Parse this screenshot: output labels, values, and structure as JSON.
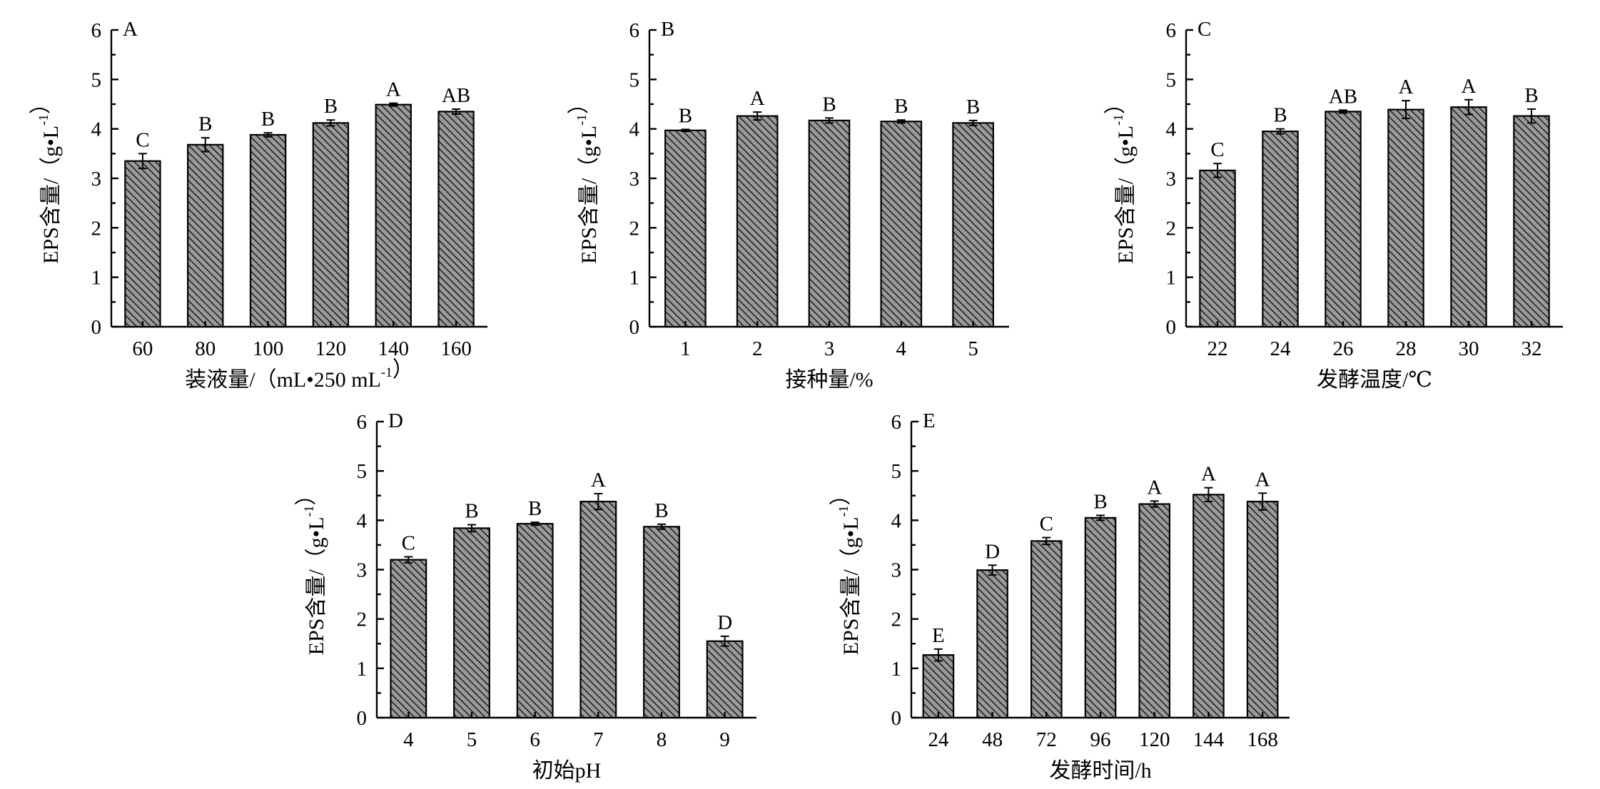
{
  "chart_data": [
    {
      "type": "bar",
      "panel_label": "A",
      "categories": [
        "60",
        "80",
        "100",
        "120",
        "140",
        "160"
      ],
      "values": [
        3.35,
        3.68,
        3.88,
        4.12,
        4.49,
        4.35
      ],
      "errors": [
        0.15,
        0.14,
        0.04,
        0.06,
        0.03,
        0.05
      ],
      "significance": [
        "C",
        "B",
        "B",
        "B",
        "A",
        "AB"
      ],
      "xlabel": "装液量/（mL•250 mL-1）",
      "ylabel": "EPS含量/（g•L-1）",
      "ylim": [
        0,
        6
      ],
      "yticks": [
        "0",
        "1",
        "2",
        "3",
        "4",
        "5",
        "6"
      ],
      "grid": false
    },
    {
      "type": "bar",
      "panel_label": "B",
      "categories": [
        "1",
        "2",
        "3",
        "4",
        "5"
      ],
      "values": [
        3.97,
        4.26,
        4.17,
        4.15,
        4.12
      ],
      "errors": [
        0.02,
        0.08,
        0.05,
        0.03,
        0.05
      ],
      "significance": [
        "B",
        "A",
        "B",
        "B",
        "B"
      ],
      "xlabel": "接种量/%",
      "ylabel": "EPS含量/（g•L-1）",
      "ylim": [
        0,
        6
      ],
      "yticks": [
        "0",
        "1",
        "2",
        "3",
        "4",
        "5",
        "6"
      ],
      "grid": false
    },
    {
      "type": "bar",
      "panel_label": "C",
      "categories": [
        "22",
        "24",
        "26",
        "28",
        "30",
        "32"
      ],
      "values": [
        3.16,
        3.95,
        4.35,
        4.39,
        4.44,
        4.26
      ],
      "errors": [
        0.14,
        0.05,
        0.03,
        0.18,
        0.15,
        0.14
      ],
      "significance": [
        "C",
        "B",
        "AB",
        "A",
        "A",
        "B"
      ],
      "xlabel": "发酵温度/℃",
      "ylabel": "EPS含量/（g•L-1）",
      "ylim": [
        0,
        6
      ],
      "yticks": [
        "0",
        "1",
        "2",
        "3",
        "4",
        "5",
        "6"
      ],
      "grid": false
    },
    {
      "type": "bar",
      "panel_label": "D",
      "categories": [
        "4",
        "5",
        "6",
        "7",
        "8",
        "9"
      ],
      "values": [
        3.2,
        3.84,
        3.93,
        4.38,
        3.87,
        1.55
      ],
      "errors": [
        0.06,
        0.07,
        0.03,
        0.16,
        0.05,
        0.1
      ],
      "significance": [
        "C",
        "B",
        "B",
        "A",
        "B",
        "D"
      ],
      "xlabel": "初始pH",
      "ylabel": "EPS含量/（g•L-1）",
      "ylim": [
        0,
        6
      ],
      "yticks": [
        "0",
        "1",
        "2",
        "3",
        "4",
        "5",
        "6"
      ],
      "grid": false
    },
    {
      "type": "bar",
      "panel_label": "E",
      "categories": [
        "24",
        "48",
        "72",
        "96",
        "120",
        "144",
        "168"
      ],
      "values": [
        1.27,
        2.99,
        3.58,
        4.05,
        4.33,
        4.52,
        4.38
      ],
      "errors": [
        0.12,
        0.1,
        0.07,
        0.05,
        0.06,
        0.14,
        0.17
      ],
      "significance": [
        "E",
        "D",
        "C",
        "B",
        "A",
        "A",
        "A"
      ],
      "xlabel": "发酵时间/h",
      "ylabel": "EPS含量/（g•L-1）",
      "ylim": [
        0,
        6
      ],
      "yticks": [
        "0",
        "1",
        "2",
        "3",
        "4",
        "5",
        "6"
      ],
      "grid": false
    }
  ]
}
